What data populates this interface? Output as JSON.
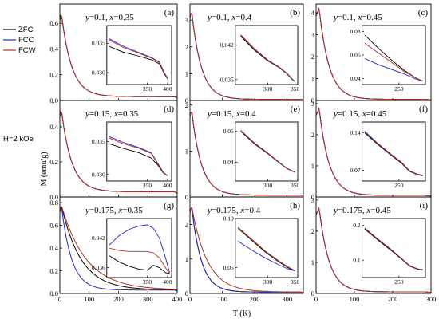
{
  "figure": {
    "xlabel": "T (K)",
    "ylabel": "M (emu/g)",
    "field_label": "H=2 kOe",
    "colors": {
      "ZFC": "#000000",
      "FCC": "#2222cc",
      "FCW": "#b03020"
    }
  },
  "legend": [
    {
      "name": "ZFC",
      "color": "#000000"
    },
    {
      "name": "FCC",
      "color": "#2222cc"
    },
    {
      "name": "FCW",
      "color": "#b03020"
    }
  ],
  "chart_data": [
    {
      "type": "line",
      "panel": "(a)",
      "comp_y": "0.1",
      "comp_x": "0.35",
      "xlim": [
        0,
        400
      ],
      "ylim": [
        0,
        0.75
      ],
      "xticks": [],
      "yticks": [
        0.0,
        0.2,
        0.4,
        0.6
      ],
      "ytick_labels": [
        "0.0",
        "0.2",
        "0.4",
        "0.6"
      ],
      "peak": {
        "x": 5,
        "y": 0.68
      },
      "decay": 35,
      "tail": 0.03,
      "tc": 390,
      "inset": {
        "xlim": [
          250,
          410
        ],
        "ylim": [
          0.028,
          0.038
        ],
        "xticks": [
          350,
          400
        ],
        "yticks": [
          0.03,
          0.035
        ],
        "ytick_labels": [
          "0.030",
          "0.035"
        ],
        "series": [
          {
            "name": "ZFC",
            "x": [
              255,
              290,
              330,
              360,
              380,
              392,
              400
            ],
            "y": [
              0.0345,
              0.0335,
              0.0328,
              0.0322,
              0.0315,
              0.0298,
              0.029
            ]
          },
          {
            "name": "FCC",
            "x": [
              255,
              290,
              330,
              360,
              380,
              392,
              400
            ],
            "y": [
              0.0358,
              0.0345,
              0.0334,
              0.0326,
              0.0318,
              0.03,
              0.0291
            ]
          },
          {
            "name": "FCW",
            "x": [
              255,
              290,
              330,
              360,
              380,
              392,
              400
            ],
            "y": [
              0.0356,
              0.0343,
              0.0333,
              0.0325,
              0.0317,
              0.0299,
              0.0291
            ]
          }
        ]
      }
    },
    {
      "type": "line",
      "panel": "(b)",
      "comp_y": "0.1",
      "comp_x": "0.4",
      "xlim": [
        0,
        350
      ],
      "ylim": [
        0,
        3.6
      ],
      "xticks": [],
      "yticks": [
        0,
        1,
        2,
        3
      ],
      "ytick_labels": [
        "0",
        "1",
        "2",
        "3"
      ],
      "peak": {
        "x": 5,
        "y": 3.35
      },
      "decay": 30,
      "tail": 0.04,
      "tc": 340,
      "inset": {
        "xlim": [
          240,
          355
        ],
        "ylim": [
          0.034,
          0.046
        ],
        "xticks": [
          300,
          350
        ],
        "yticks": [
          0.035,
          0.042
        ],
        "ytick_labels": [
          "0.035",
          "0.042"
        ],
        "series": [
          {
            "name": "ZFC",
            "x": [
              250,
              275,
              300,
              320,
              335,
              345,
              350
            ],
            "y": [
              0.0438,
              0.041,
              0.0388,
              0.0375,
              0.0362,
              0.035,
              0.0346
            ]
          },
          {
            "name": "FCC",
            "x": [
              250,
              275,
              300,
              320,
              335,
              345,
              350
            ],
            "y": [
              0.044,
              0.0412,
              0.0389,
              0.0376,
              0.0363,
              0.0351,
              0.0346
            ]
          },
          {
            "name": "FCW",
            "x": [
              250,
              275,
              300,
              320,
              335,
              345,
              350
            ],
            "y": [
              0.0441,
              0.0413,
              0.039,
              0.0376,
              0.0363,
              0.0351,
              0.0347
            ]
          }
        ]
      }
    },
    {
      "type": "line",
      "panel": "(c)",
      "comp_y": "0.1",
      "comp_x": "0.45",
      "xlim": [
        0,
        300
      ],
      "ylim": [
        0,
        4.4
      ],
      "xticks": [],
      "yticks": [
        0,
        1,
        2,
        3,
        4
      ],
      "ytick_labels": [
        "0",
        "1",
        "2",
        "3",
        "4"
      ],
      "peak": {
        "x": 8,
        "y": 4.2
      },
      "decay": 26,
      "tail": 0.05,
      "tc": 285,
      "inset": {
        "xlim": [
          180,
          300
        ],
        "ylim": [
          0.035,
          0.085
        ],
        "xticks": [
          250
        ],
        "yticks": [
          0.04,
          0.06,
          0.08
        ],
        "ytick_labels": [
          "0.04",
          "0.06",
          "0.08"
        ],
        "series": [
          {
            "name": "ZFC",
            "x": [
              185,
              210,
              235,
              260,
              280,
              295
            ],
            "y": [
              0.077,
              0.066,
              0.056,
              0.047,
              0.041,
              0.038
            ]
          },
          {
            "name": "FCC",
            "x": [
              185,
              210,
              235,
              260,
              280,
              295
            ],
            "y": [
              0.057,
              0.052,
              0.048,
              0.044,
              0.04,
              0.038
            ]
          },
          {
            "name": "FCW",
            "x": [
              185,
              210,
              235,
              260,
              280,
              295
            ],
            "y": [
              0.07,
              0.062,
              0.054,
              0.046,
              0.041,
              0.038
            ]
          }
        ]
      }
    },
    {
      "type": "line",
      "panel": "(d)",
      "comp_y": "0.15",
      "comp_x": "0.35",
      "xlim": [
        0,
        400
      ],
      "ylim": [
        0,
        0.55
      ],
      "xticks": [],
      "yticks": [
        0.0,
        0.2,
        0.4
      ],
      "ytick_labels": [
        "0.0",
        "0.2",
        "0.4"
      ],
      "peak": {
        "x": 5,
        "y": 0.5
      },
      "decay": 35,
      "tail": 0.03,
      "tc": 390,
      "inset": {
        "xlim": [
          250,
          410
        ],
        "ylim": [
          0.029,
          0.038
        ],
        "xticks": [
          350,
          400
        ],
        "yticks": [
          0.03,
          0.035
        ],
        "ytick_labels": [
          "0.030",
          "0.035"
        ],
        "series": [
          {
            "name": "ZFC",
            "x": [
              255,
              290,
              330,
              360,
              375,
              390,
              400
            ],
            "y": [
              0.0347,
              0.034,
              0.0333,
              0.0325,
              0.0315,
              0.0302,
              0.0298
            ]
          },
          {
            "name": "FCC",
            "x": [
              255,
              290,
              330,
              360,
              375,
              390,
              400
            ],
            "y": [
              0.0358,
              0.0349,
              0.0341,
              0.0333,
              0.0318,
              0.0303,
              0.0298
            ]
          },
          {
            "name": "FCW",
            "x": [
              255,
              290,
              330,
              360,
              375,
              390,
              400
            ],
            "y": [
              0.0356,
              0.0347,
              0.034,
              0.0332,
              0.0317,
              0.0303,
              0.0298
            ]
          }
        ]
      }
    },
    {
      "type": "line",
      "panel": "(e)",
      "comp_y": "0.15",
      "comp_x": "0.4",
      "xlim": [
        0,
        350
      ],
      "ylim": [
        0,
        2.1
      ],
      "xticks": [],
      "yticks": [
        0,
        1,
        2
      ],
      "ytick_labels": [
        "0",
        "1",
        "2"
      ],
      "peak": {
        "x": 5,
        "y": 1.9
      },
      "decay": 30,
      "tail": 0.04,
      "tc": 340,
      "inset": {
        "xlim": [
          240,
          355
        ],
        "ylim": [
          0.034,
          0.053
        ],
        "xticks": [
          300,
          350
        ],
        "yticks": [
          0.04,
          0.05
        ],
        "ytick_labels": [
          "0.04",
          "0.05"
        ],
        "series": [
          {
            "name": "ZFC",
            "x": [
              250,
              275,
              300,
              320,
              335,
              350
            ],
            "y": [
              0.05,
              0.046,
              0.0428,
              0.04,
              0.038,
              0.0368
            ]
          },
          {
            "name": "FCC",
            "x": [
              250,
              275,
              300,
              320,
              335,
              350
            ],
            "y": [
              0.0502,
              0.0462,
              0.0429,
              0.0401,
              0.0381,
              0.0368
            ]
          },
          {
            "name": "FCW",
            "x": [
              250,
              275,
              300,
              320,
              335,
              350
            ],
            "y": [
              0.0503,
              0.0463,
              0.043,
              0.0402,
              0.0381,
              0.0369
            ]
          }
        ]
      }
    },
    {
      "type": "line",
      "panel": "(f)",
      "comp_y": "0.15",
      "comp_x": "0.45",
      "xlim": [
        0,
        300
      ],
      "ylim": [
        0,
        3.1
      ],
      "xticks": [],
      "yticks": [
        0,
        1,
        2,
        3
      ],
      "ytick_labels": [
        "0",
        "1",
        "2",
        "3"
      ],
      "peak": {
        "x": 8,
        "y": 2.85
      },
      "decay": 26,
      "tail": 0.05,
      "tc": 285,
      "inset": {
        "xlim": [
          180,
          300
        ],
        "ylim": [
          0.05,
          0.16
        ],
        "xticks": [
          250
        ],
        "yticks": [
          0.07,
          0.14
        ],
        "ytick_labels": [
          "0.07",
          "0.14"
        ],
        "series": [
          {
            "name": "ZFC",
            "x": [
              185,
              210,
              235,
              255,
              270,
              285,
              295
            ],
            "y": [
              0.14,
              0.118,
              0.098,
              0.083,
              0.068,
              0.062,
              0.06
            ]
          },
          {
            "name": "FCC",
            "x": [
              185,
              210,
              235,
              255,
              270,
              285,
              295
            ],
            "y": [
              0.142,
              0.119,
              0.099,
              0.084,
              0.069,
              0.062,
              0.06
            ]
          },
          {
            "name": "FCW",
            "x": [
              185,
              210,
              235,
              255,
              270,
              285,
              295
            ],
            "y": [
              0.143,
              0.12,
              0.1,
              0.085,
              0.069,
              0.063,
              0.061
            ]
          }
        ]
      }
    },
    {
      "type": "line",
      "panel": "(g)",
      "comp_y": "0.175",
      "comp_x": "0.35",
      "xlim": [
        0,
        400
      ],
      "ylim": [
        0,
        0.85
      ],
      "xticks": [
        0,
        100,
        200,
        300,
        400
      ],
      "yticks": [
        0.0,
        0.2,
        0.4,
        0.6,
        0.8
      ],
      "ytick_labels": [
        "0.0",
        "0.2",
        "0.4",
        "0.6",
        "0.8"
      ],
      "peak": {
        "x": 5,
        "y": 0.78
      },
      "decay": 35,
      "tail": 0.03,
      "tc": 390,
      "split": {
        "ZFC": 1.9,
        "FCC": 1.0,
        "FCW": 2.4
      },
      "inset": {
        "xlim": [
          250,
          410
        ],
        "ylim": [
          0.034,
          0.046
        ],
        "xticks": [
          350,
          400
        ],
        "yticks": [
          0.036,
          0.042
        ],
        "ytick_labels": [
          "0.036",
          "0.042"
        ],
        "series": [
          {
            "name": "ZFC",
            "x": [
              255,
              280,
              305,
              330,
              350,
              365,
              380,
              395,
              405
            ],
            "y": [
              0.0385,
              0.0372,
              0.0363,
              0.0357,
              0.0355,
              0.0365,
              0.036,
              0.035,
              0.0348
            ]
          },
          {
            "name": "FCC",
            "x": [
              255,
              280,
              305,
              330,
              350,
              365,
              380,
              395,
              405
            ],
            "y": [
              0.0405,
              0.0425,
              0.0438,
              0.0445,
              0.0447,
              0.044,
              0.042,
              0.038,
              0.035
            ]
          },
          {
            "name": "FCW",
            "x": [
              255,
              280,
              305,
              330,
              350,
              365,
              380,
              395,
              405
            ],
            "y": [
              0.04,
              0.0395,
              0.0393,
              0.0393,
              0.0393,
              0.039,
              0.038,
              0.036,
              0.0348
            ]
          }
        ]
      }
    },
    {
      "type": "line",
      "panel": "(h)",
      "comp_y": "0.175",
      "comp_x": "0.4",
      "xlim": [
        0,
        350
      ],
      "ylim": [
        0,
        2.8
      ],
      "xticks": [
        0,
        100,
        200,
        300
      ],
      "yticks": [
        0,
        1,
        2
      ],
      "ytick_labels": [
        "0",
        "1",
        "2"
      ],
      "peak": {
        "x": 5,
        "y": 2.55
      },
      "decay": 30,
      "tail": 0.04,
      "tc": 340,
      "split": {
        "ZFC": 1.0,
        "FCC": 1.0,
        "FCW": 1.6
      },
      "inset": {
        "xlim": [
          240,
          355
        ],
        "ylim": [
          0.04,
          0.1
        ],
        "xticks": [
          300,
          350
        ],
        "yticks": [
          0.05,
          0.1
        ],
        "ytick_labels": [
          "0.05",
          "0.10"
        ],
        "series": [
          {
            "name": "ZFC",
            "x": [
              245,
              270,
              295,
              320,
              340,
              350
            ],
            "y": [
              0.09,
              0.078,
              0.066,
              0.056,
              0.049,
              0.047
            ]
          },
          {
            "name": "FCC",
            "x": [
              245,
              270,
              295,
              320,
              340,
              350
            ],
            "y": [
              0.077,
              0.068,
              0.06,
              0.053,
              0.048,
              0.047
            ]
          },
          {
            "name": "FCW",
            "x": [
              245,
              270,
              295,
              320,
              340,
              350
            ],
            "y": [
              0.091,
              0.079,
              0.067,
              0.057,
              0.05,
              0.047
            ]
          }
        ]
      }
    },
    {
      "type": "line",
      "panel": "(i)",
      "comp_y": "0.175",
      "comp_x": "0.45",
      "xlim": [
        0,
        300
      ],
      "ylim": [
        0,
        3.1
      ],
      "xticks": [
        0,
        100,
        200,
        300
      ],
      "yticks": [
        0,
        1,
        2,
        3
      ],
      "ytick_labels": [
        "0",
        "1",
        "2",
        "3"
      ],
      "peak": {
        "x": 8,
        "y": 2.75
      },
      "decay": 26,
      "tail": 0.05,
      "tc": 285,
      "inset": {
        "xlim": [
          180,
          300
        ],
        "ylim": [
          0.05,
          0.22
        ],
        "xticks": [
          250
        ],
        "yticks": [
          0.1,
          0.2
        ],
        "ytick_labels": [
          "0.1",
          "0.2"
        ],
        "series": [
          {
            "name": "ZFC",
            "x": [
              185,
              210,
              235,
              255,
              270,
              285,
              295
            ],
            "y": [
              0.19,
              0.158,
              0.128,
              0.103,
              0.083,
              0.074,
              0.072
            ]
          },
          {
            "name": "FCC",
            "x": [
              185,
              210,
              235,
              255,
              270,
              285,
              295
            ],
            "y": [
              0.192,
              0.16,
              0.13,
              0.104,
              0.084,
              0.075,
              0.072
            ]
          },
          {
            "name": "FCW",
            "x": [
              185,
              210,
              235,
              255,
              270,
              285,
              295
            ],
            "y": [
              0.193,
              0.161,
              0.131,
              0.105,
              0.085,
              0.075,
              0.073
            ]
          }
        ]
      }
    }
  ]
}
